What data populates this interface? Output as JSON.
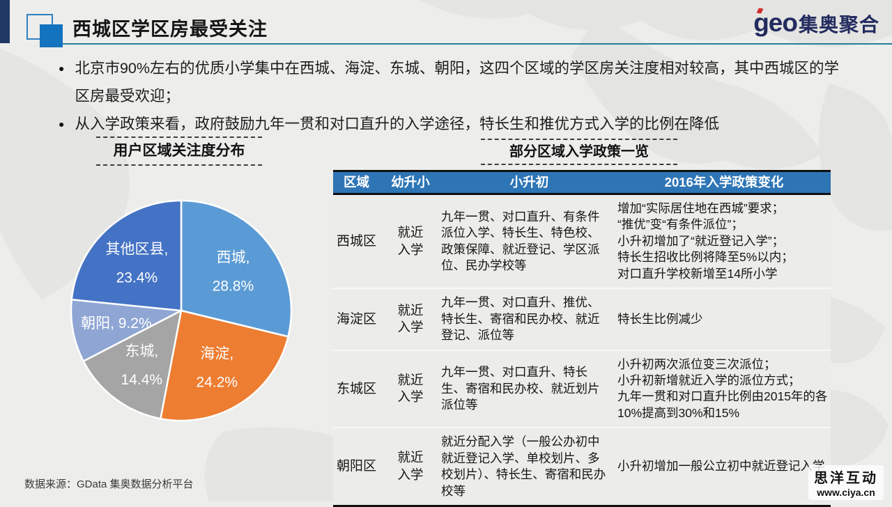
{
  "header": {
    "title": "西城区学区房最受关注",
    "logo_geo": "geo",
    "logo_name": "集奥聚合",
    "underline_color": "#217E9B",
    "accent_color": "#1473BE"
  },
  "bullets": [
    "北京市90%左右的优质小学集中在西城、海淀、东城、朝阳，这四个区域的学区房关注度相对较高，其中西城区的学区房最受欢迎；",
    "从入学政策来看，政府鼓励九年一贯和对口直升的入学途径，特长生和推优方式入学的比例在降低"
  ],
  "chart_data": {
    "type": "pie",
    "title": "用户区域关注度分布",
    "labels": [
      "西城",
      "海淀",
      "东城",
      "朝阳",
      "其他区县"
    ],
    "values": [
      28.8,
      24.2,
      14.4,
      9.2,
      23.4
    ],
    "colors": [
      "#5B9BD5",
      "#ED7D31",
      "#A5A5A5",
      "#8FA6D4",
      "#4472C4"
    ],
    "start_angle_deg": 0,
    "direction": "clockwise",
    "label_format": "name, value%",
    "label_color": "#ffffff",
    "slice_border_color": "#ffffff"
  },
  "table": {
    "title": "部分区域入学政策一览",
    "header_bg": "#2E75B6",
    "columns": [
      "区域",
      "幼升小",
      "小升初",
      "2016年入学政策变化"
    ],
    "rows": [
      {
        "region": "西城区",
        "youshengxiao": "就近入学",
        "xiaoshengchu": "九年一贯、对口直升、有条件派位入学、特长生、特色校、政策保障、就近登记、学区派位、民办学校等",
        "change": [
          "增加“实际居住地在西城”要求；",
          "“推优”变“有条件派位”；",
          "小升初增加了“就近登记入学”；",
          "特长生招收比例将降至5%以内；",
          "对口直升学校新增至14所小学"
        ]
      },
      {
        "region": "海淀区",
        "youshengxiao": "就近入学",
        "xiaoshengchu": "九年一贯、对口直升、推优、特长生、寄宿和民办校、就近登记、派位等",
        "change": [
          "特长生比例减少"
        ]
      },
      {
        "region": "东城区",
        "youshengxiao": "就近入学",
        "xiaoshengchu": "九年一贯、对口直升、特长生、寄宿和民办校、就近划片派位等",
        "change": [
          "小升初两次派位变三次派位；",
          "小升初新增就近入学的派位方式；",
          "九年一贯和对口直升比例由2015年的各10%提高到30%和15%"
        ]
      },
      {
        "region": "朝阳区",
        "youshengxiao": "就近入学",
        "xiaoshengchu": "就近分配入学（一般公办初中就近登记入学、单校划片、多校划片）、特长生、寄宿和民办校等",
        "change": [
          "小升初增加一般公立初中就近登记入学"
        ]
      }
    ]
  },
  "footer": {
    "source": "数据来源：GData 集奥数据分析平台",
    "watermark_name": "思洋互动",
    "watermark_url": "www.ciya.cn"
  }
}
